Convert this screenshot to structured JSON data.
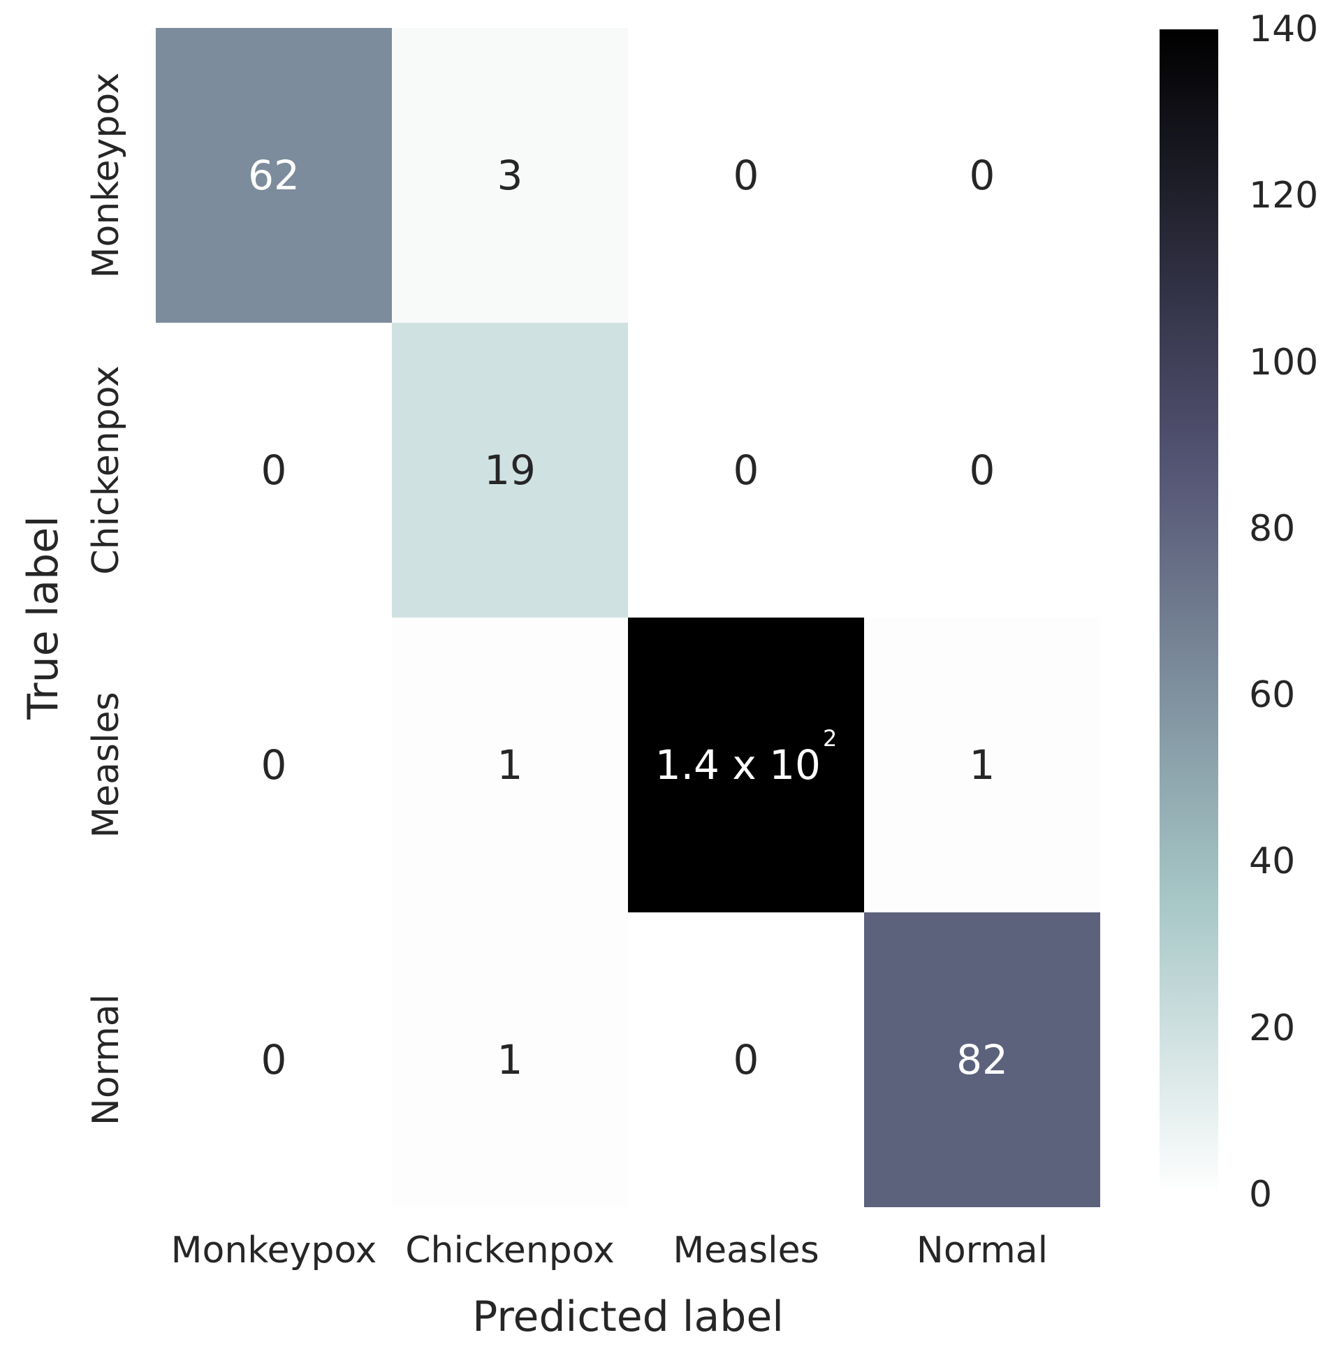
{
  "chart_data": {
    "type": "heatmap",
    "title": "",
    "xlabel": "Predicted label",
    "ylabel": "True label",
    "x_categories": [
      "Monkeypox",
      "Chickenpox",
      "Measles",
      "Normal"
    ],
    "y_categories": [
      "Monkeypox",
      "Chickenpox",
      "Measles",
      "Normal"
    ],
    "values": [
      [
        62,
        3,
        0,
        0
      ],
      [
        0,
        19,
        0,
        0
      ],
      [
        0,
        1,
        140,
        1
      ],
      [
        0,
        1,
        0,
        82
      ]
    ],
    "cell_labels": [
      [
        "62",
        "3",
        "0",
        "0"
      ],
      [
        "0",
        "19",
        "0",
        "0"
      ],
      [
        "0",
        "1",
        "1.4 x 10^2",
        "1"
      ],
      [
        "0",
        "1",
        "0",
        "82"
      ]
    ],
    "colormap": "bone_r",
    "vmin": 0,
    "vmax": 140,
    "colorbar_ticks": [
      0,
      20,
      40,
      60,
      80,
      100,
      120,
      140
    ],
    "colorbar_position": "right",
    "grid": false,
    "colors": {
      "background": "#ffffff",
      "text_dark": "#262626",
      "text_light": "#ffffff",
      "cmap_min_color": "#ffffff",
      "cmap_max_color": "#000000"
    }
  }
}
